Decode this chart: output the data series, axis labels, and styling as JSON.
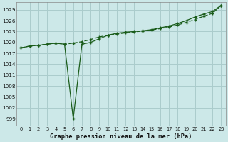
{
  "title": "Graphe pression niveau de la mer (hPa)",
  "bg_color": "#cce8e8",
  "grid_color": "#aacccc",
  "line_color": "#1a5c1a",
  "xlim": [
    -0.5,
    23.5
  ],
  "ylim": [
    997,
    1031
  ],
  "yticks": [
    999,
    1002,
    1005,
    1008,
    1011,
    1014,
    1017,
    1020,
    1023,
    1026,
    1029
  ],
  "xticks": [
    0,
    1,
    2,
    3,
    4,
    5,
    6,
    7,
    8,
    9,
    10,
    11,
    12,
    13,
    14,
    15,
    16,
    17,
    18,
    19,
    20,
    21,
    22,
    23
  ],
  "x": [
    0,
    1,
    2,
    3,
    4,
    5,
    6,
    7,
    8,
    9,
    10,
    11,
    12,
    13,
    14,
    15,
    16,
    17,
    18,
    19,
    20,
    21,
    22,
    23
  ],
  "y_solid": [
    1018.5,
    1019.0,
    1019.2,
    1019.5,
    1019.8,
    1019.5,
    999.0,
    1019.5,
    1020.0,
    1021.0,
    1022.0,
    1022.5,
    1022.8,
    1023.0,
    1023.2,
    1023.5,
    1024.0,
    1024.5,
    1025.2,
    1026.0,
    1027.0,
    1027.8,
    1028.5,
    1030.2
  ],
  "y_dashed": [
    1018.5,
    1019.0,
    1019.2,
    1019.5,
    1019.8,
    1019.5,
    1019.8,
    1020.2,
    1020.8,
    1021.5,
    1022.0,
    1022.3,
    1022.6,
    1022.9,
    1023.1,
    1023.4,
    1023.8,
    1024.2,
    1024.8,
    1025.5,
    1026.3,
    1027.2,
    1028.0,
    1030.2
  ]
}
